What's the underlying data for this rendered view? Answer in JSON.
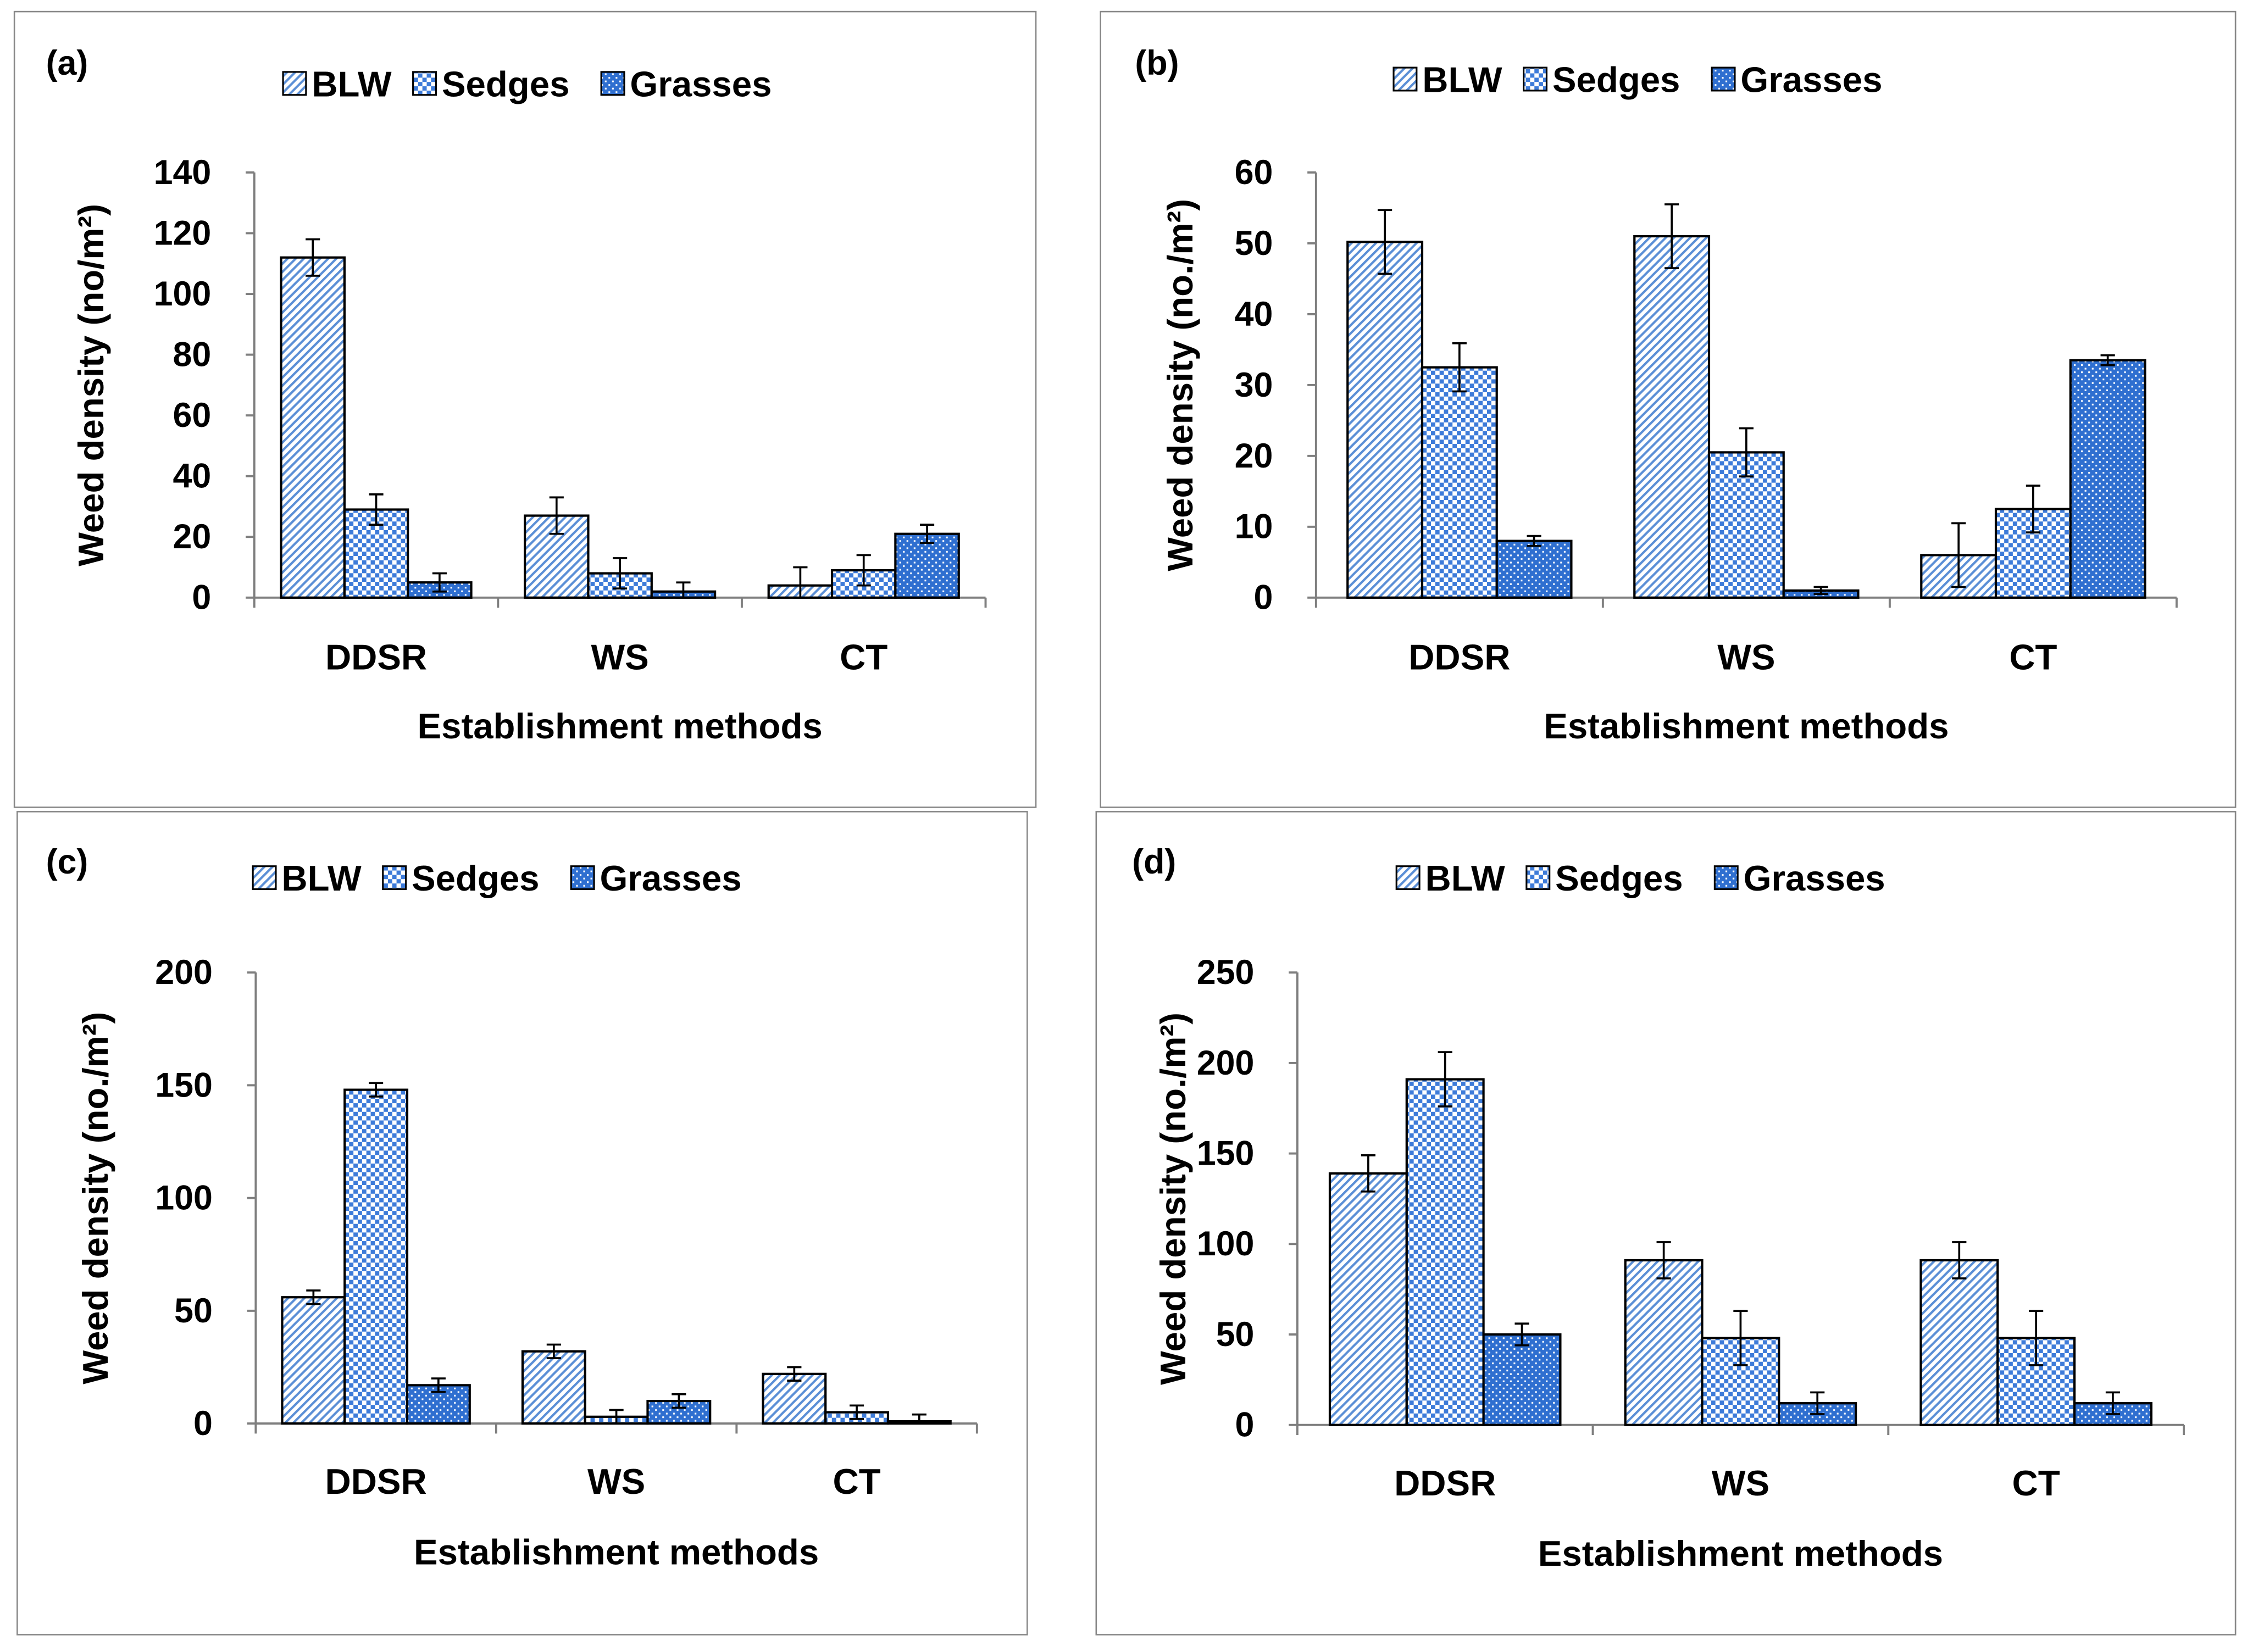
{
  "colors": {
    "blw": "#5b8fd6",
    "sedges": "#3d7bd9",
    "grasses": "#2f6fd0",
    "axis": "#7f7f7f"
  },
  "chart_data": [
    {
      "type": "bar",
      "panel_label": "(a)",
      "categories": [
        "DDSR",
        "WS",
        "CT"
      ],
      "xlabel": "Establishment methods",
      "ylabel": "Weed density (no/m²)",
      "ylim": [
        0,
        140
      ],
      "yticks": [
        0,
        20,
        40,
        60,
        80,
        100,
        120,
        140
      ],
      "legend": "top",
      "series": [
        {
          "name": "BLW",
          "values": [
            112,
            27,
            4
          ],
          "errors": [
            6,
            6,
            6
          ]
        },
        {
          "name": "Sedges",
          "values": [
            29,
            8,
            9
          ],
          "errors": [
            5,
            5,
            5
          ]
        },
        {
          "name": "Grasses",
          "values": [
            5,
            2,
            21
          ],
          "errors": [
            3,
            3,
            3
          ]
        }
      ]
    },
    {
      "type": "bar",
      "panel_label": "(b)",
      "categories": [
        "DDSR",
        "WS",
        "CT"
      ],
      "xlabel": "Establishment methods",
      "ylabel": "Weed density (no./m²)",
      "ylim": [
        0,
        60
      ],
      "yticks": [
        0,
        10,
        20,
        30,
        40,
        50,
        60
      ],
      "legend": "top",
      "series": [
        {
          "name": "BLW",
          "values": [
            50.2,
            51,
            6
          ],
          "errors": [
            4.5,
            4.5,
            4.5
          ]
        },
        {
          "name": "Sedges",
          "values": [
            32.5,
            20.5,
            12.5
          ],
          "errors": [
            3.4,
            3.4,
            3.3
          ]
        },
        {
          "name": "Grasses",
          "values": [
            8,
            1,
            33.5
          ],
          "errors": [
            0.7,
            0.5,
            0.7
          ]
        }
      ]
    },
    {
      "type": "bar",
      "panel_label": "(c)",
      "categories": [
        "DDSR",
        "WS",
        "CT"
      ],
      "xlabel": "Establishment methods",
      "ylabel": "Weed density (no./m²)",
      "ylim": [
        0,
        200
      ],
      "yticks": [
        0,
        50,
        100,
        150,
        200
      ],
      "legend": "top",
      "series": [
        {
          "name": "BLW",
          "values": [
            56,
            32,
            22
          ],
          "errors": [
            3,
            3,
            3
          ]
        },
        {
          "name": "Sedges",
          "values": [
            148,
            3,
            5
          ],
          "errors": [
            3,
            3,
            3
          ]
        },
        {
          "name": "Grasses",
          "values": [
            17,
            10,
            1
          ],
          "errors": [
            3,
            3,
            3
          ]
        }
      ]
    },
    {
      "type": "bar",
      "panel_label": "(d)",
      "categories": [
        "DDSR",
        "WS",
        "CT"
      ],
      "xlabel": "Establishment methods",
      "ylabel": "Weed density (no./m²)",
      "ylim": [
        0,
        250
      ],
      "yticks": [
        0,
        50,
        100,
        150,
        200,
        250
      ],
      "legend": "top",
      "series": [
        {
          "name": "BLW",
          "values": [
            139,
            91,
            91
          ],
          "errors": [
            10,
            10,
            10
          ]
        },
        {
          "name": "Sedges",
          "values": [
            191,
            48,
            48
          ],
          "errors": [
            15,
            15,
            15
          ]
        },
        {
          "name": "Grasses",
          "values": [
            50,
            12,
            12
          ],
          "errors": [
            6,
            6,
            6
          ]
        }
      ]
    }
  ]
}
